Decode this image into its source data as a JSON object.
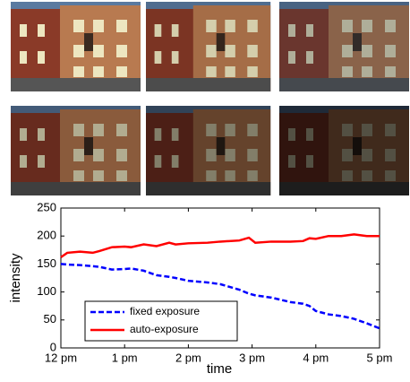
{
  "chart_data": {
    "type": "line",
    "x_label": "time",
    "y_label": "intensity",
    "x": [
      0,
      0.1,
      0.3,
      0.5,
      0.6,
      0.8,
      1,
      1.1,
      1.3,
      1.5,
      1.7,
      1.8,
      2,
      2.3,
      2.5,
      2.8,
      2.95,
      3.05,
      3.3,
      3.6,
      3.8,
      3.9,
      4,
      4.2,
      4.4,
      4.6,
      4.8,
      5
    ],
    "series": [
      {
        "name": "fixed exposure",
        "color": "#0000ff",
        "dash": true,
        "values": [
          150,
          149,
          148,
          146,
          145,
          140,
          141,
          142,
          138,
          130,
          127,
          125,
          120,
          117,
          114,
          104,
          97,
          94,
          90,
          82,
          79,
          75,
          66,
          60,
          57,
          52,
          44,
          35
        ]
      },
      {
        "name": "auto-exposure",
        "color": "#ff0000",
        "dash": false,
        "values": [
          162,
          170,
          172,
          170,
          173,
          180,
          181,
          180,
          185,
          182,
          188,
          185,
          187,
          188,
          190,
          192,
          197,
          188,
          190,
          190,
          191,
          196,
          195,
          200,
          200,
          203,
          200,
          200
        ]
      }
    ],
    "xlim": [
      0,
      5
    ],
    "xticks": [
      {
        "value": 0,
        "label": "12 pm"
      },
      {
        "value": 1,
        "label": "1 pm"
      },
      {
        "value": 2,
        "label": "2 pm"
      },
      {
        "value": 3,
        "label": "3 pm"
      },
      {
        "value": 4,
        "label": "4 pm"
      },
      {
        "value": 5,
        "label": "5 pm"
      }
    ],
    "ylim": [
      0,
      250
    ],
    "yticks": [
      0,
      50,
      100,
      150,
      200,
      250
    ],
    "legend": "lower-left"
  }
}
